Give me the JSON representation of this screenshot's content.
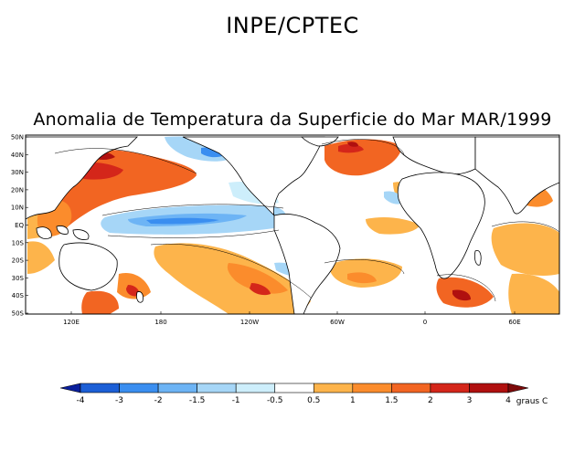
{
  "header": {
    "title": "INPE/CPTEC"
  },
  "map": {
    "title": "Anomalia de Temperatura da Superficie do Mar MAR/1999",
    "lat_labels": [
      "50N",
      "40N",
      "30N",
      "20N",
      "10N",
      "EQ",
      "10S",
      "20S",
      "30S",
      "40S",
      "50S"
    ],
    "lon_labels": [
      "120E",
      "180",
      "120W",
      "60W",
      "0",
      "60E"
    ]
  },
  "colorbar": {
    "labels": [
      "-4",
      "-3",
      "-2",
      "-1.5",
      "-1",
      "-0.5",
      "0.5",
      "1",
      "1.5",
      "2",
      "3",
      "4"
    ],
    "colors": [
      "#0a1f9c",
      "#1c5fd6",
      "#3a8ef0",
      "#6db4f5",
      "#a6d6f7",
      "#cdeefb",
      "#ffffff",
      "#fdb44b",
      "#fb8c2c",
      "#f26522",
      "#d4261a",
      "#b0100f",
      "#7d0a0a"
    ],
    "unit": "graus C"
  }
}
